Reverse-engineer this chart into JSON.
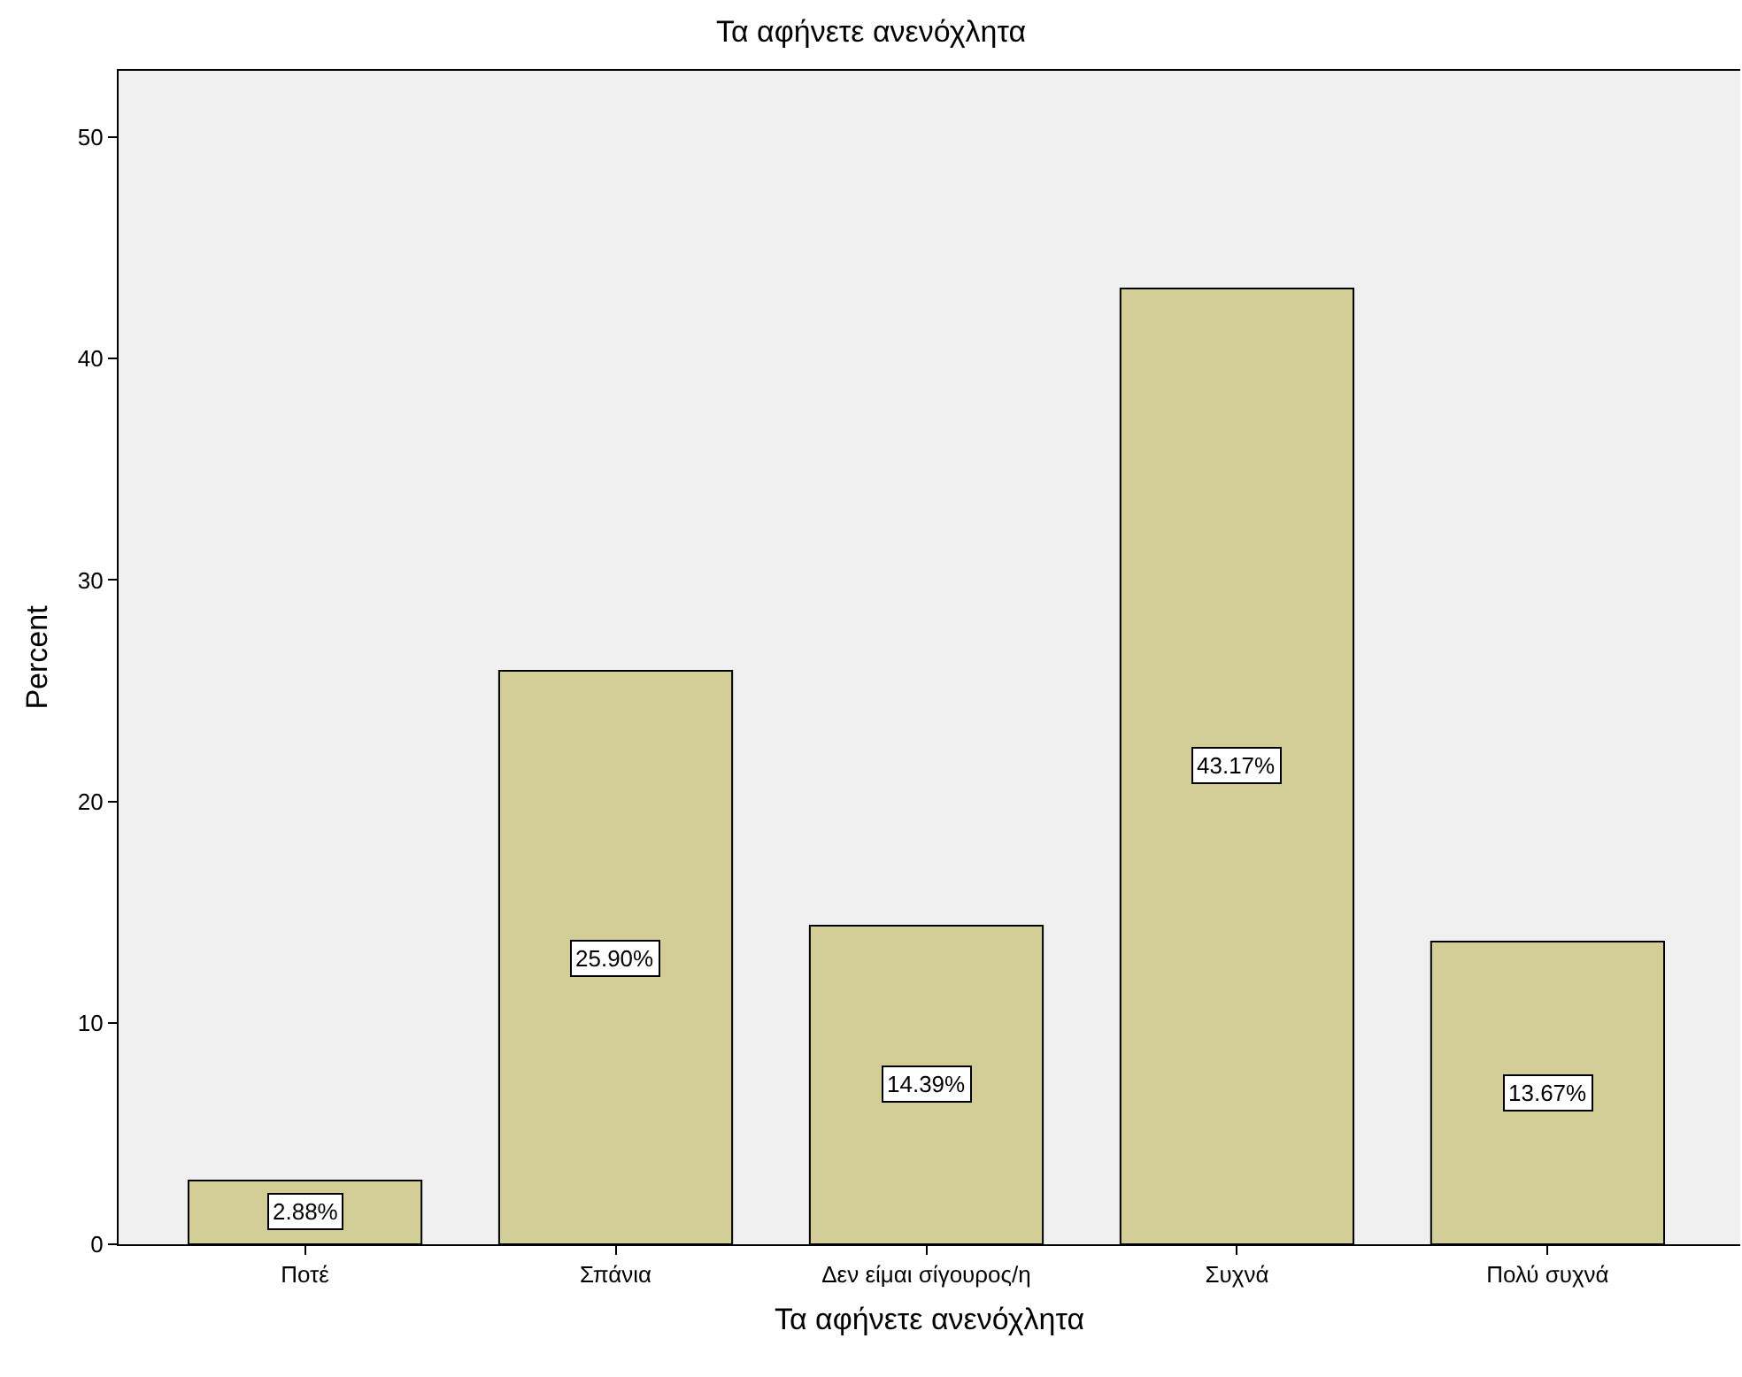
{
  "chart_data": {
    "type": "bar",
    "title": "Τα αφήνετε ανενόχλητα",
    "xlabel": "Τα αφήνετε ανενόχλητα",
    "ylabel": "Percent",
    "categories": [
      "Ποτέ",
      "Σπάνια",
      "Δεν είμαι σίγουρος/η",
      "Συχνά",
      "Πολύ συχνά"
    ],
    "values": [
      2.88,
      25.9,
      14.39,
      43.17,
      13.67
    ],
    "value_labels": [
      "2.88%",
      "25.90%",
      "14.39%",
      "43.17%",
      "13.67%"
    ],
    "color": "#d3ce98",
    "ylim": [
      0,
      53
    ],
    "yticks": [
      0,
      10,
      20,
      30,
      40,
      50
    ],
    "grid": false,
    "legend": false
  }
}
